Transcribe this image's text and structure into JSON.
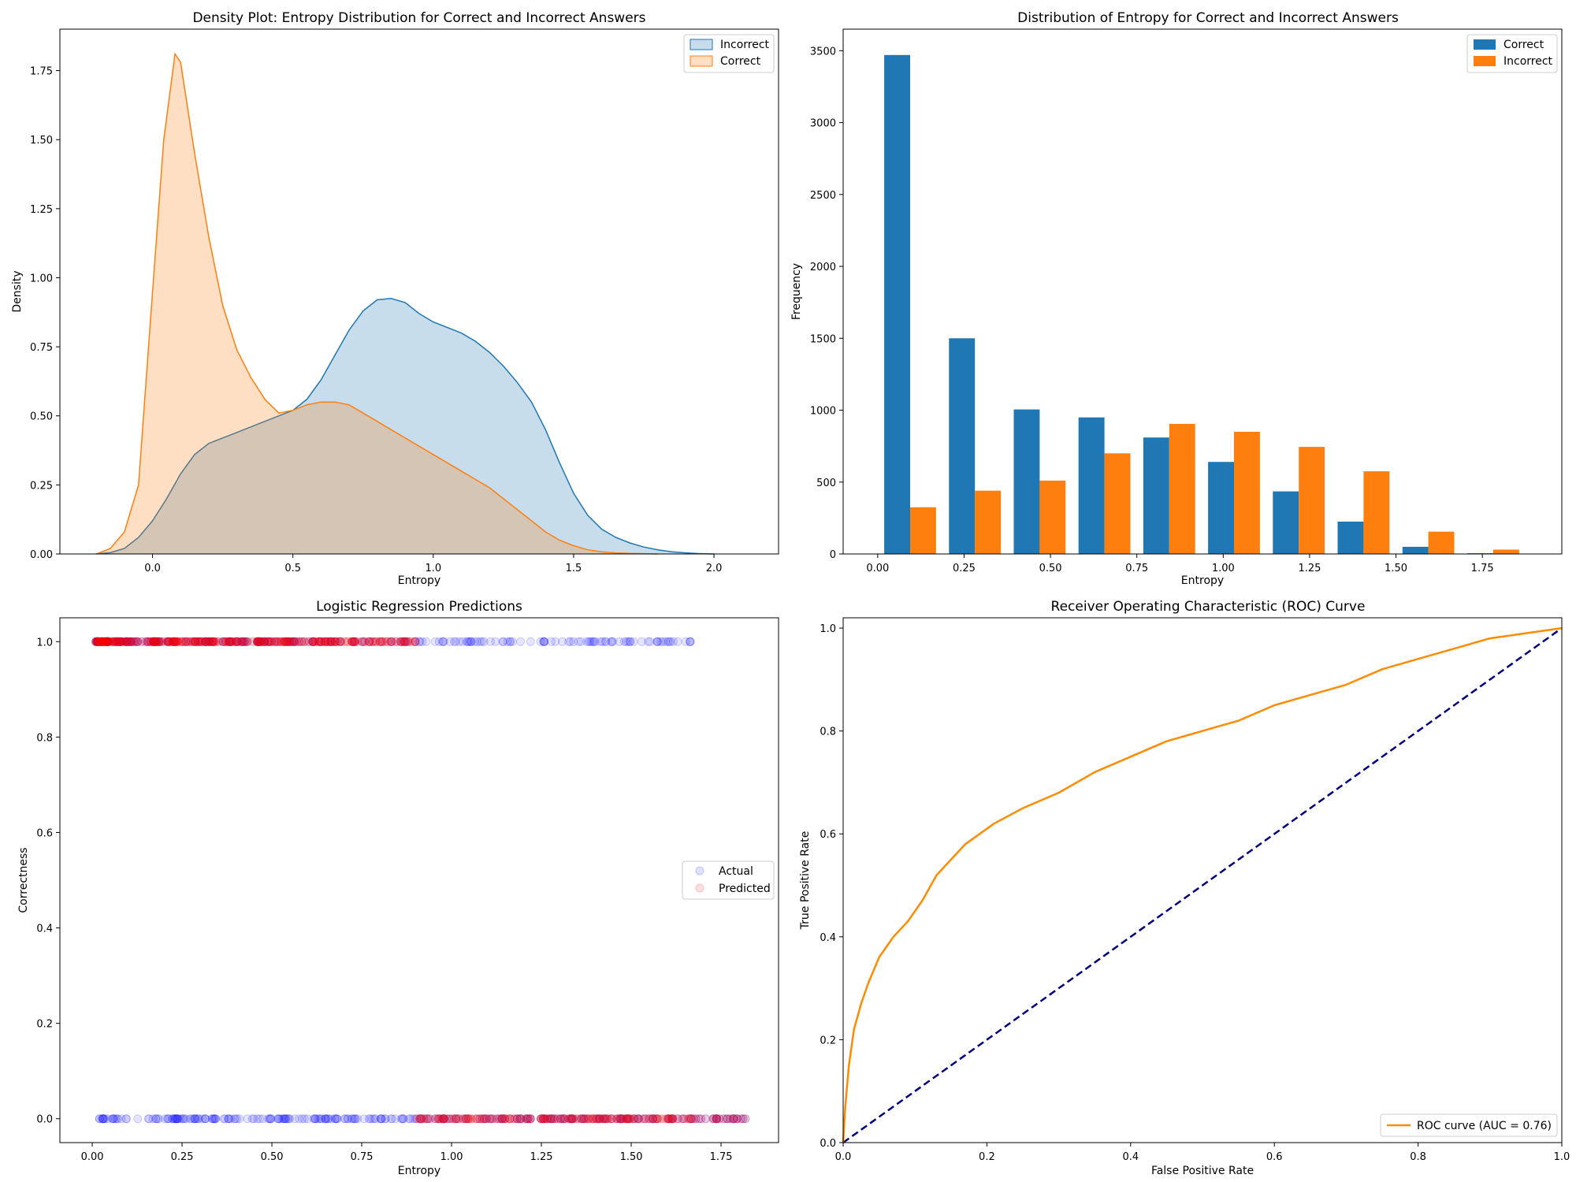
{
  "figure": {
    "background": "#ffffff"
  },
  "chart_data": [
    {
      "type": "area",
      "title": "Density Plot: Entropy Distribution for Correct and Incorrect Answers",
      "xlabel": "Entropy",
      "ylabel": "Density",
      "xlim": [
        -0.33,
        2.23
      ],
      "ylim": [
        0,
        1.9
      ],
      "xticks": [
        "0.0",
        "0.5",
        "1.0",
        "1.5",
        "2.0"
      ],
      "yticks": [
        "0.00",
        "0.25",
        "0.50",
        "0.75",
        "1.00",
        "1.25",
        "1.50",
        "1.75"
      ],
      "legend_position": "top-right",
      "series": [
        {
          "name": "Incorrect",
          "color": "#1f77b4",
          "x": [
            -0.2,
            -0.15,
            -0.1,
            -0.05,
            0.0,
            0.05,
            0.1,
            0.15,
            0.2,
            0.25,
            0.3,
            0.35,
            0.4,
            0.45,
            0.5,
            0.55,
            0.6,
            0.65,
            0.7,
            0.75,
            0.8,
            0.85,
            0.9,
            0.95,
            1.0,
            1.05,
            1.1,
            1.15,
            1.2,
            1.25,
            1.3,
            1.35,
            1.4,
            1.45,
            1.5,
            1.55,
            1.6,
            1.65,
            1.7,
            1.75,
            1.8,
            1.85,
            1.9,
            1.95,
            2.0
          ],
          "y": [
            0.0,
            0.005,
            0.02,
            0.06,
            0.12,
            0.2,
            0.29,
            0.36,
            0.4,
            0.42,
            0.44,
            0.46,
            0.48,
            0.5,
            0.52,
            0.56,
            0.63,
            0.72,
            0.81,
            0.88,
            0.92,
            0.925,
            0.91,
            0.87,
            0.84,
            0.82,
            0.8,
            0.77,
            0.73,
            0.68,
            0.62,
            0.55,
            0.45,
            0.33,
            0.22,
            0.14,
            0.09,
            0.06,
            0.04,
            0.025,
            0.015,
            0.008,
            0.004,
            0.001,
            0.0
          ]
        },
        {
          "name": "Correct",
          "color": "#ff7f0e",
          "x": [
            -0.2,
            -0.15,
            -0.1,
            -0.05,
            0.0,
            0.04,
            0.08,
            0.1,
            0.15,
            0.2,
            0.25,
            0.3,
            0.35,
            0.4,
            0.45,
            0.5,
            0.55,
            0.6,
            0.65,
            0.7,
            0.75,
            0.8,
            0.85,
            0.9,
            0.95,
            1.0,
            1.05,
            1.1,
            1.15,
            1.2,
            1.25,
            1.3,
            1.35,
            1.4,
            1.45,
            1.5,
            1.55,
            1.6,
            1.65,
            1.7,
            1.75,
            1.8
          ],
          "y": [
            0.0,
            0.02,
            0.08,
            0.25,
            0.95,
            1.5,
            1.81,
            1.78,
            1.45,
            1.15,
            0.9,
            0.74,
            0.64,
            0.56,
            0.51,
            0.52,
            0.54,
            0.55,
            0.55,
            0.54,
            0.51,
            0.48,
            0.45,
            0.42,
            0.39,
            0.36,
            0.33,
            0.3,
            0.27,
            0.24,
            0.2,
            0.16,
            0.12,
            0.08,
            0.05,
            0.03,
            0.015,
            0.008,
            0.004,
            0.002,
            0.001,
            0.0
          ]
        }
      ]
    },
    {
      "type": "bar",
      "title": "Distribution of Entropy for Correct and Incorrect Answers",
      "xlabel": "Entropy",
      "ylabel": "Frequency",
      "xlim": [
        -0.1,
        1.98
      ],
      "ylim": [
        0,
        3650
      ],
      "xticks": [
        "0.00",
        "0.25",
        "0.50",
        "0.75",
        "1.00",
        "1.25",
        "1.50",
        "1.75"
      ],
      "yticks": [
        "0",
        "500",
        "1000",
        "1500",
        "2000",
        "2500",
        "3000",
        "3500"
      ],
      "legend_position": "top-right",
      "bin_edges": [
        0.0,
        0.1875,
        0.375,
        0.5625,
        0.75,
        0.9375,
        1.125,
        1.3125,
        1.5,
        1.6875,
        1.875
      ],
      "series": [
        {
          "name": "Correct",
          "color": "#1f77b4",
          "values": [
            3470,
            1500,
            1005,
            950,
            810,
            640,
            435,
            225,
            50,
            5
          ]
        },
        {
          "name": "Incorrect",
          "color": "#ff7f0e",
          "values": [
            325,
            440,
            510,
            700,
            905,
            850,
            745,
            575,
            155,
            30
          ]
        }
      ]
    },
    {
      "type": "scatter",
      "title": "Logistic Regression Predictions",
      "xlabel": "Entropy",
      "ylabel": "Correctness",
      "xlim": [
        -0.09,
        1.91
      ],
      "ylim": [
        -0.05,
        1.05
      ],
      "xticks": [
        "0.00",
        "0.25",
        "0.50",
        "0.75",
        "1.00",
        "1.25",
        "1.50",
        "1.75"
      ],
      "yticks": [
        "0.0",
        "0.2",
        "0.4",
        "0.6",
        "0.8",
        "1.0"
      ],
      "legend_position": "center-right",
      "decision_threshold": 0.9,
      "series": [
        {
          "name": "Actual",
          "color": "#0000ff",
          "y1_range": [
            0.0,
            1.69
          ],
          "y0_range": [
            0.01,
            1.82
          ]
        },
        {
          "name": "Predicted",
          "color": "#ff0000",
          "y1_range": [
            0.0,
            0.9
          ],
          "y0_range": [
            0.9,
            1.82
          ]
        }
      ]
    },
    {
      "type": "line",
      "title": "Receiver Operating Characteristic (ROC) Curve",
      "xlabel": "False Positive Rate",
      "ylabel": "True Positive Rate",
      "xlim": [
        0,
        1
      ],
      "ylim": [
        0,
        1.02
      ],
      "xticks": [
        "0.0",
        "0.2",
        "0.4",
        "0.6",
        "0.8",
        "1.0"
      ],
      "yticks": [
        "0.0",
        "0.2",
        "0.4",
        "0.6",
        "0.8",
        "1.0"
      ],
      "legend_position": "bottom-right",
      "series": [
        {
          "name": "ROC curve (AUC = 0.76)",
          "color": "#ff8c00",
          "x": [
            0,
            0.003,
            0.008,
            0.015,
            0.025,
            0.035,
            0.05,
            0.07,
            0.09,
            0.11,
            0.13,
            0.15,
            0.17,
            0.19,
            0.21,
            0.25,
            0.3,
            0.35,
            0.4,
            0.45,
            0.5,
            0.55,
            0.6,
            0.65,
            0.7,
            0.75,
            0.8,
            0.85,
            0.9,
            0.95,
            1.0
          ],
          "y": [
            0,
            0.07,
            0.15,
            0.22,
            0.27,
            0.31,
            0.36,
            0.4,
            0.43,
            0.47,
            0.52,
            0.55,
            0.58,
            0.6,
            0.62,
            0.65,
            0.68,
            0.72,
            0.75,
            0.78,
            0.8,
            0.82,
            0.85,
            0.87,
            0.89,
            0.92,
            0.94,
            0.96,
            0.98,
            0.99,
            1.0
          ]
        },
        {
          "name": "",
          "color": "#000080",
          "dashed": true,
          "x": [
            0,
            1
          ],
          "y": [
            0,
            1
          ]
        }
      ]
    }
  ]
}
